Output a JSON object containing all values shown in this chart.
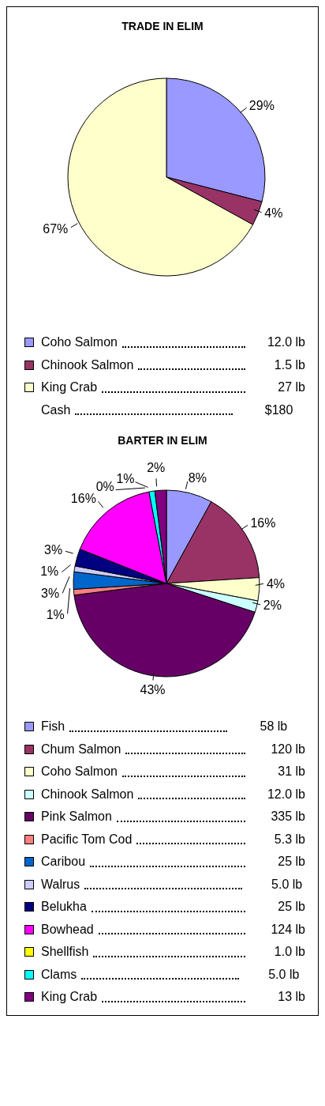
{
  "chart_data": [
    {
      "type": "pie",
      "title": "TRADE IN ELIM",
      "categories": [
        "Coho Salmon",
        "Chinook Salmon",
        "King Crab"
      ],
      "values": [
        29,
        4,
        67
      ],
      "value_labels": [
        "29%",
        "4%",
        "67%"
      ],
      "colors": [
        "#9999ff",
        "#993366",
        "#ffffcc"
      ],
      "legend": "bottom",
      "annotations": [
        "12.0 lb",
        "1.5 lb",
        "27 lb",
        "Cash",
        "$180"
      ]
    },
    {
      "type": "pie",
      "title": "BARTER IN ELIM",
      "categories": [
        "Fish",
        "Chum Salmon",
        "Coho Salmon",
        "Chinook Salmon",
        "Pink Salmon",
        "Pacific Tom Cod",
        "Caribou",
        "Walrus",
        "Belukha",
        "Bowhead",
        "Shellfish",
        "Clams",
        "King Crab"
      ],
      "values": [
        8,
        16,
        4,
        2,
        43,
        1,
        3,
        1,
        3,
        16,
        0,
        1,
        2
      ],
      "value_labels": [
        "8%",
        "16%",
        "4%",
        "2%",
        "43%",
        "1%",
        "3%",
        "1%",
        "3%",
        "16%",
        "0%",
        "1%",
        "2%"
      ],
      "colors": [
        "#9999ff",
        "#993366",
        "#ffffcc",
        "#ccffff",
        "#660066",
        "#ff8080",
        "#0066cc",
        "#ccccff",
        "#000080",
        "#ff00ff",
        "#ffff00",
        "#00ffff",
        "#800080"
      ],
      "legend": "bottom",
      "annotations": [
        "58 lb",
        "120 lb",
        "31 lb",
        "12.0 lb",
        "335 lb",
        "5.3 lb",
        "25 lb",
        "5.0 lb",
        "25 lb",
        "124 lb",
        "1.0 lb",
        "5.0 lb",
        "13 lb"
      ]
    }
  ]
}
